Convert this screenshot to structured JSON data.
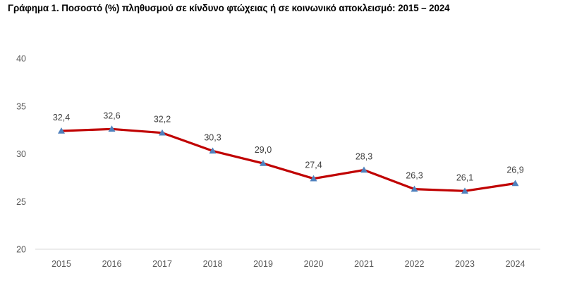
{
  "chart_data": {
    "type": "line",
    "title": "Γράφημα 1. Ποσοστό (%) πληθυσμού σε κίνδυνο φτώχειας ή σε κοινωνικό αποκλεισμό: 2015 – 2024",
    "xlabel": "",
    "ylabel": "",
    "categories": [
      "2015",
      "2016",
      "2017",
      "2018",
      "2019",
      "2020",
      "2021",
      "2022",
      "2023",
      "2024"
    ],
    "series": [
      {
        "values": [
          32.4,
          32.6,
          32.2,
          30.3,
          29.0,
          27.4,
          28.3,
          26.3,
          26.1,
          26.9
        ],
        "labels": [
          "32,4",
          "32,6",
          "32,2",
          "30,3",
          "29,0",
          "27,4",
          "28,3",
          "26,3",
          "26,1",
          "26,9"
        ]
      }
    ],
    "ylim": [
      20,
      40
    ],
    "yticks": [
      "20",
      "25",
      "30",
      "35",
      "40"
    ],
    "grid": false,
    "legend": "none",
    "colors": {
      "line": "#C00000",
      "marker": "#4F81BD",
      "axis": "#D9D9D9"
    }
  }
}
